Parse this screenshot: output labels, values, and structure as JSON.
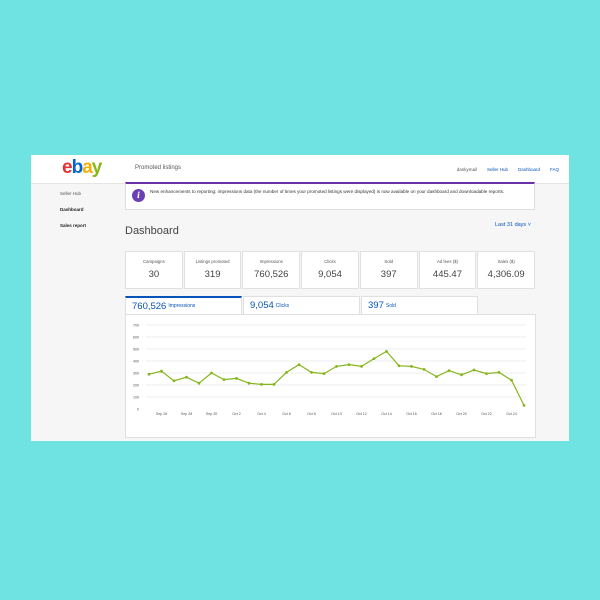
{
  "header": {
    "logo": {
      "e": "e",
      "b": "b",
      "a": "a",
      "y": "y"
    },
    "product": "Promoted listings",
    "links": {
      "user": "dankymail",
      "seller_hub": "Seller Hub",
      "dashboard": "Dashboard",
      "faq": "FAQ"
    }
  },
  "colors": {
    "logo_e": "#e53238",
    "logo_b": "#0064d2",
    "logo_a": "#f5af02",
    "logo_y": "#86b817",
    "accent": "#0654ba",
    "line": "#86b61d",
    "notice": "#6b3fb5"
  },
  "sidebar": {
    "seller_hub": "Seller Hub",
    "dashboard": "Dashboard",
    "sales_report": "Sales report"
  },
  "notice": {
    "icon": "info-icon",
    "text": "New enhancements to reporting: impressions data (the number of times your promoted listings were displayed) is now available on your dashboard and downloadable reports."
  },
  "page": {
    "title": "Dashboard",
    "range": "Last 31 days ˅"
  },
  "stats": [
    {
      "label": "Campaigns",
      "value": "30"
    },
    {
      "label": "Listings promoted",
      "value": "319"
    },
    {
      "label": "Impressions",
      "value": "760,526"
    },
    {
      "label": "Clicks",
      "value": "9,054"
    },
    {
      "label": "Sold",
      "value": "397"
    },
    {
      "label": "Ad fees ($)",
      "value": "445.47"
    },
    {
      "label": "Sales ($)",
      "value": "4,306.09"
    }
  ],
  "tabs": [
    {
      "value": "760,526",
      "label": "Impressions"
    },
    {
      "value": "9,054",
      "label": "Clicks"
    },
    {
      "value": "397",
      "label": "Sold"
    }
  ],
  "chart_data": {
    "type": "line",
    "ylim": [
      0,
      700
    ],
    "yticks": [
      "0",
      "100",
      "200",
      "300",
      "400",
      "500",
      "600",
      "700"
    ],
    "xticks": [
      "Sep 26",
      "Sep 28",
      "Sep 30",
      "Oct 2",
      "Oct 4",
      "Oct 6",
      "Oct 8",
      "Oct 10",
      "Oct 12",
      "Oct 14",
      "Oct 16",
      "Oct 18",
      "Oct 20",
      "Oct 22",
      "Oct 24"
    ],
    "values": [
      290,
      315,
      235,
      265,
      215,
      300,
      245,
      255,
      215,
      205,
      205,
      305,
      370,
      305,
      295,
      355,
      370,
      355,
      420,
      480,
      360,
      355,
      330,
      270,
      320,
      285,
      325,
      295,
      305,
      240,
      30
    ]
  }
}
